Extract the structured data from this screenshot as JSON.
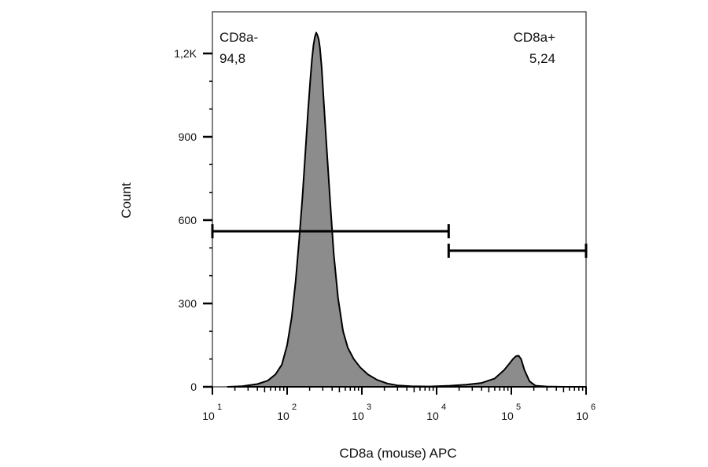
{
  "chart_data": {
    "type": "area",
    "title": "",
    "xlabel": "CD8a (mouse) APC",
    "ylabel": "Count",
    "x_scale": "log",
    "xlim": [
      10,
      1000000
    ],
    "ylim": [
      0,
      1350
    ],
    "x_ticks": [
      {
        "base": "10",
        "exp": "1",
        "value": 10
      },
      {
        "base": "10",
        "exp": "2",
        "value": 100
      },
      {
        "base": "10",
        "exp": "3",
        "value": 1000
      },
      {
        "base": "10",
        "exp": "4",
        "value": 10000
      },
      {
        "base": "10",
        "exp": "5",
        "value": 100000
      },
      {
        "base": "10",
        "exp": "6",
        "value": 1000000
      }
    ],
    "y_ticks": [
      {
        "label": "0",
        "value": 0
      },
      {
        "label": "300",
        "value": 300
      },
      {
        "label": "600",
        "value": 600
      },
      {
        "label": "900",
        "value": 900
      },
      {
        "label": "1,2K",
        "value": 1200
      }
    ],
    "fill_color": "#8c8c8c",
    "line_color": "#000000",
    "series": [
      {
        "x": [
          16,
          25,
          40,
          55,
          70,
          85,
          100,
          115,
          130,
          145,
          160,
          175,
          190,
          205,
          215,
          225,
          235,
          245,
          255,
          265,
          275,
          290,
          310,
          340,
          380,
          420,
          480,
          560,
          650,
          780,
          950,
          1200,
          1600,
          2200,
          3000,
          4500,
          8000,
          15000,
          25000,
          40000,
          60000,
          80000,
          95000,
          105000,
          115000,
          125000,
          135000,
          150000,
          175000,
          210000,
          300000,
          500000,
          1000000
        ],
        "y": [
          0,
          2,
          10,
          22,
          45,
          80,
          150,
          250,
          380,
          530,
          680,
          840,
          990,
          1110,
          1180,
          1230,
          1260,
          1275,
          1265,
          1250,
          1220,
          1150,
          1020,
          850,
          650,
          480,
          320,
          200,
          140,
          100,
          70,
          45,
          25,
          12,
          5,
          2,
          1,
          4,
          8,
          14,
          30,
          60,
          85,
          100,
          110,
          112,
          100,
          60,
          20,
          4,
          1,
          0,
          0
        ]
      }
    ],
    "gates": [
      {
        "name": "CD8a-",
        "value": "94,8",
        "x_start": 10,
        "x_end": 14500,
        "y": 560
      },
      {
        "name": "CD8a+",
        "value": "5,24",
        "x_start": 14500,
        "x_end": 1000000,
        "y": 490
      }
    ]
  }
}
